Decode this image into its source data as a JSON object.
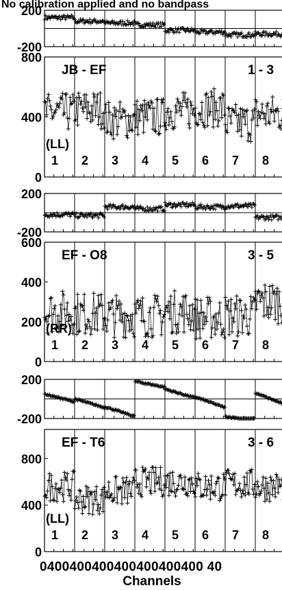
{
  "title": "No calibration applied and no bandpass",
  "xlabel": "Channels",
  "x_tick_text": "0400400400400400400400 40",
  "chart_data": {
    "type": "scatter",
    "description_units": "phase panels in degrees, amplitude panels in correlator units",
    "subband_labels": [
      "1",
      "2",
      "3",
      "4",
      "5",
      "6",
      "7",
      "8"
    ],
    "channels_per_subband": 64,
    "x_ticks_per_subband": [
      0,
      40
    ],
    "baselines": [
      {
        "name": "JB - EF",
        "scan": "1 - 3",
        "polarization": "(LL)",
        "phase": {
          "ylim": [
            -200,
            200
          ],
          "yticks": [
            "200",
            "-200"
          ],
          "subband_levels": [
            120,
            80,
            60,
            40,
            -20,
            -40,
            -70,
            -60
          ],
          "slopes": [
            0,
            0,
            0,
            0,
            0,
            0,
            0,
            0
          ],
          "noise": 25
        },
        "amplitude": {
          "ylim": [
            0,
            800
          ],
          "yticks": [
            "800",
            "400",
            "0"
          ],
          "subband_levels": [
            430,
            450,
            380,
            400,
            440,
            460,
            360,
            420
          ],
          "noise": 130
        }
      },
      {
        "name": "EF - O8",
        "scan": "3 - 5",
        "polarization": "(RR)",
        "phase": {
          "ylim": [
            -200,
            200
          ],
          "yticks": [
            "200",
            "-200"
          ],
          "subband_levels": [
            -20,
            -30,
            60,
            40,
            80,
            60,
            70,
            -50
          ],
          "slopes": [
            0,
            0,
            0,
            0,
            0,
            0,
            0,
            0
          ],
          "noise": 25
        },
        "amplitude": {
          "ylim": [
            0,
            600
          ],
          "yticks": [
            "600",
            "400",
            "200",
            "0"
          ],
          "subband_levels": [
            250,
            240,
            230,
            230,
            250,
            220,
            230,
            300
          ],
          "noise": 110
        }
      },
      {
        "name": "EF - T6",
        "scan": "3 - 6",
        "polarization": "(LL)",
        "phase": {
          "ylim": [
            -200,
            200
          ],
          "yticks": [
            "200",
            "-200"
          ],
          "subband_levels": [
            50,
            0,
            -80,
            180,
            100,
            20,
            -180,
            60
          ],
          "slopes": [
            -80,
            -90,
            -100,
            -60,
            -90,
            -110,
            -40,
            -120
          ],
          "noise": 8
        },
        "amplitude": {
          "ylim": [
            0,
            1050
          ],
          "yticks": [
            "800",
            "400",
            "0"
          ],
          "subband_levels": [
            560,
            450,
            520,
            600,
            600,
            560,
            580,
            560
          ],
          "noise": 130
        }
      }
    ]
  },
  "colors": {
    "ink": "#000000",
    "background": "#ffffff"
  }
}
